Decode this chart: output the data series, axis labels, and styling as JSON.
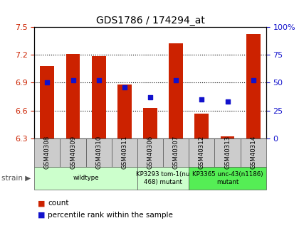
{
  "title": "GDS1786 / 174294_at",
  "samples": [
    "GSM40308",
    "GSM40309",
    "GSM40310",
    "GSM40311",
    "GSM40306",
    "GSM40307",
    "GSM40312",
    "GSM40313",
    "GSM40314"
  ],
  "count_values": [
    7.08,
    7.21,
    7.19,
    6.88,
    6.63,
    7.32,
    6.57,
    6.32,
    7.42
  ],
  "percentile_values": [
    50,
    52,
    52,
    46,
    37,
    52,
    35,
    33,
    52
  ],
  "ylim_left": [
    6.3,
    7.5
  ],
  "ylim_right": [
    0,
    100
  ],
  "yticks_left": [
    6.3,
    6.6,
    6.9,
    7.2,
    7.5
  ],
  "yticks_right": [
    0,
    25,
    50,
    75,
    100
  ],
  "ytick_labels_right": [
    "0",
    "25",
    "50",
    "75",
    "100%"
  ],
  "grid_yvals": [
    6.6,
    6.9,
    7.2
  ],
  "bar_color": "#cc2200",
  "dot_color": "#1111cc",
  "bar_width": 0.55,
  "groups": [
    {
      "label": "wildtype",
      "start": 0,
      "end": 3,
      "color": "#ccffcc"
    },
    {
      "label": "KP3293 tom-1(nu\n468) mutant",
      "start": 4,
      "end": 5,
      "color": "#ccffcc"
    },
    {
      "label": "KP3365 unc-43(n1186)\nmutant",
      "start": 6,
      "end": 8,
      "color": "#55ee55"
    }
  ],
  "left_tick_color": "#cc2200",
  "right_tick_color": "#1111cc",
  "legend_items": [
    {
      "color": "#cc2200",
      "label": "count"
    },
    {
      "color": "#1111cc",
      "label": "percentile rank within the sample"
    }
  ]
}
